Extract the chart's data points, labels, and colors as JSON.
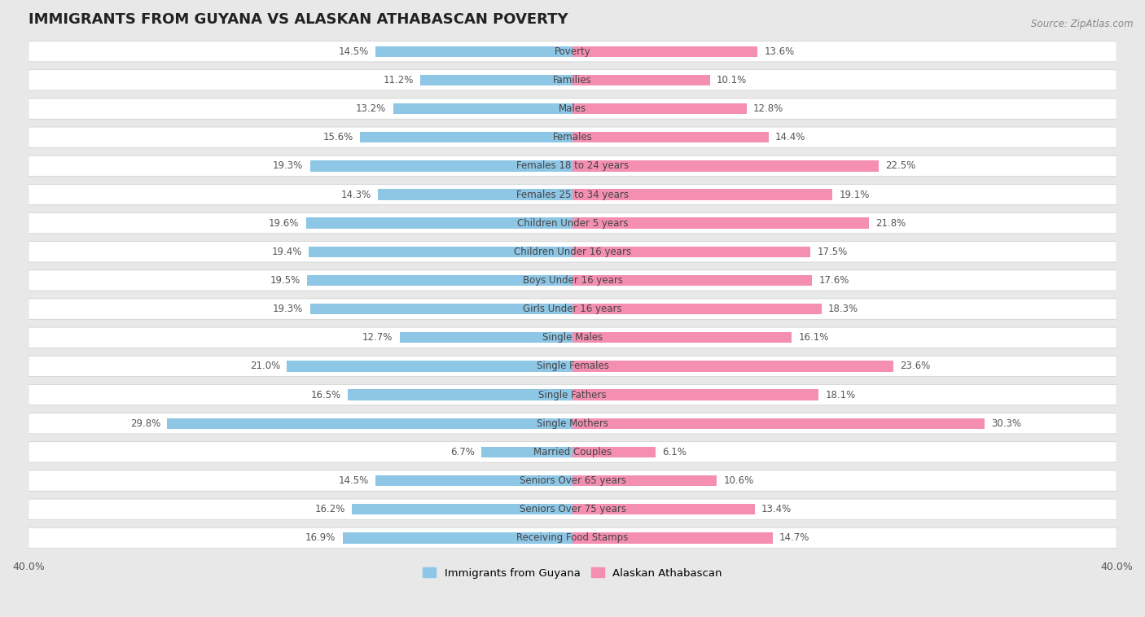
{
  "title": "IMMIGRANTS FROM GUYANA VS ALASKAN ATHABASCAN POVERTY",
  "source": "Source: ZipAtlas.com",
  "categories": [
    "Poverty",
    "Families",
    "Males",
    "Females",
    "Females 18 to 24 years",
    "Females 25 to 34 years",
    "Children Under 5 years",
    "Children Under 16 years",
    "Boys Under 16 years",
    "Girls Under 16 years",
    "Single Males",
    "Single Females",
    "Single Fathers",
    "Single Mothers",
    "Married Couples",
    "Seniors Over 65 years",
    "Seniors Over 75 years",
    "Receiving Food Stamps"
  ],
  "left_values": [
    14.5,
    11.2,
    13.2,
    15.6,
    19.3,
    14.3,
    19.6,
    19.4,
    19.5,
    19.3,
    12.7,
    21.0,
    16.5,
    29.8,
    6.7,
    14.5,
    16.2,
    16.9
  ],
  "right_values": [
    13.6,
    10.1,
    12.8,
    14.4,
    22.5,
    19.1,
    21.8,
    17.5,
    17.6,
    18.3,
    16.1,
    23.6,
    18.1,
    30.3,
    6.1,
    10.6,
    13.4,
    14.7
  ],
  "left_color": "#8ec6e6",
  "right_color": "#f48fb1",
  "background_color": "#e8e8e8",
  "row_color": "#ffffff",
  "xlim": 40.0,
  "legend_left": "Immigrants from Guyana",
  "legend_right": "Alaskan Athabascan",
  "title_fontsize": 13,
  "label_fontsize": 8.5,
  "value_fontsize": 8.5
}
